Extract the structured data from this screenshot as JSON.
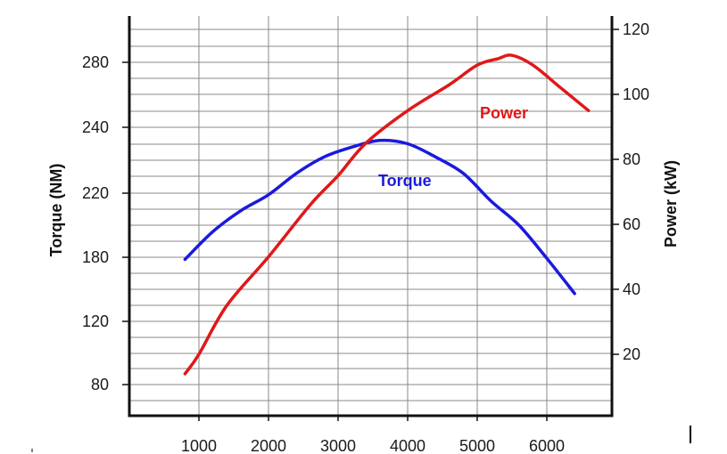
{
  "chart_data": {
    "type": "line",
    "x_ticks": [
      1000,
      2000,
      3000,
      4000,
      5000,
      6000
    ],
    "left_axis": {
      "label": "Torque (NM)",
      "tick_labels": [
        "80",
        "120",
        "180",
        "220",
        "240",
        "280"
      ]
    },
    "right_axis": {
      "label": "Power (kW)",
      "tick_labels": [
        "20",
        "40",
        "60",
        "80",
        "100",
        "120"
      ]
    },
    "series": [
      {
        "name": "Torque",
        "axis": "left",
        "color": "#1a1adc",
        "x": [
          800,
          1200,
          1600,
          2000,
          2400,
          2800,
          3200,
          3600,
          4000,
          4400,
          4800,
          5200,
          5600,
          6000,
          6400
        ],
        "y": [
          178,
          196,
          209,
          219,
          226,
          231,
          234,
          236,
          235,
          231,
          226,
          215,
          200,
          179,
          146
        ]
      },
      {
        "name": "Power",
        "axis": "right",
        "color": "#e01818",
        "x": [
          800,
          1000,
          1400,
          2000,
          2600,
          3000,
          3400,
          4000,
          4600,
          5000,
          5300,
          5500,
          5800,
          6200,
          6600
        ],
        "y": [
          14,
          20,
          35,
          50,
          66,
          75,
          85,
          95,
          103,
          109,
          111,
          112,
          109,
          102,
          95
        ]
      }
    ],
    "grid": true
  }
}
